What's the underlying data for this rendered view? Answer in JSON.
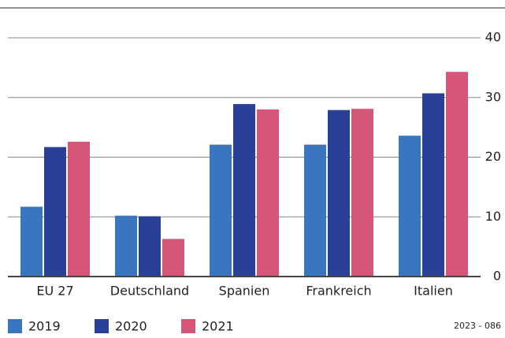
{
  "chart_data": {
    "type": "bar",
    "categories": [
      "EU 27",
      "Deutschland",
      "Spanien",
      "Frankreich",
      "Italien"
    ],
    "series": [
      {
        "name": "2019",
        "color": "#3a76bf",
        "values": [
          11.7,
          10.2,
          22.1,
          22.1,
          23.6
        ]
      },
      {
        "name": "2020",
        "color": "#2a3f96",
        "values": [
          21.7,
          10.1,
          28.9,
          27.9,
          30.7
        ]
      },
      {
        "name": "2021",
        "color": "#d6567a",
        "values": [
          22.6,
          6.3,
          28.0,
          28.1,
          34.3
        ]
      }
    ],
    "ylim": [
      0,
      40
    ],
    "yticks": [
      0,
      10,
      20,
      30,
      40
    ],
    "grid": true,
    "legend": "bottom-left",
    "note": "2023 - 086"
  }
}
